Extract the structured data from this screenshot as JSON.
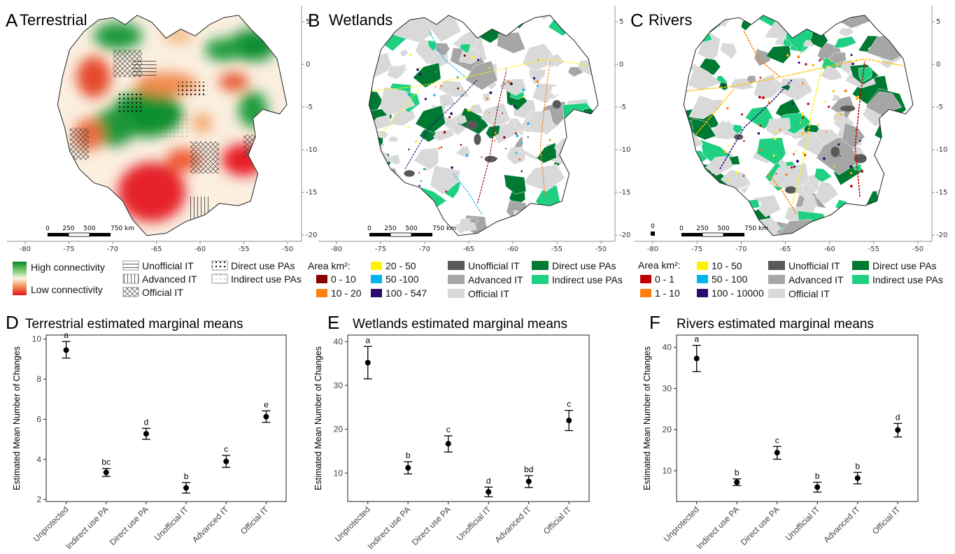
{
  "maps": [
    {
      "letter": "A",
      "title": "Terrestrial",
      "x_ticks": [
        "-80",
        "-75",
        "-70",
        "-65",
        "-60",
        "-55",
        "-50"
      ],
      "y_ticks": [
        "5",
        "0",
        "-5",
        "-10",
        "-15",
        "-20"
      ],
      "scale_ticks": [
        "0",
        "250",
        "500",
        "750 km"
      ],
      "legend_gradient": {
        "high": "High connectivity",
        "low": "Low connectivity"
      },
      "legend_items": [
        {
          "label": "Unofficial IT",
          "pattern": "horizontal-lines"
        },
        {
          "label": "Advanced IT",
          "pattern": "vertical-lines"
        },
        {
          "label": "Official IT",
          "pattern": "crosshatch"
        },
        {
          "label": "Direct use PAs",
          "pattern": "dense-dots"
        },
        {
          "label": "Indirect use PAs",
          "pattern": "sparse-dots"
        }
      ]
    },
    {
      "letter": "B",
      "title": "Wetlands",
      "x_ticks": [
        "-80",
        "-75",
        "-70",
        "-65",
        "-60",
        "-55",
        "-50"
      ],
      "y_ticks": [
        "5",
        "0",
        "-5",
        "-10",
        "-15",
        "-20"
      ],
      "scale_ticks": [
        "0",
        "250",
        "500",
        "750 km"
      ],
      "legend_heading": "Area km²:",
      "area_classes": [
        {
          "label": "0 - 10",
          "color": "#8b0000"
        },
        {
          "label": "10 - 20",
          "color": "#ff7f0e"
        },
        {
          "label": "20 - 50",
          "color": "#fff200"
        },
        {
          "label": "50 -100",
          "color": "#00b4f0"
        },
        {
          "label": "100 - 547",
          "color": "#2a0a6e"
        }
      ],
      "status_classes": [
        {
          "label": "Unofficial IT",
          "color": "#595959"
        },
        {
          "label": "Advanced IT",
          "color": "#a6a6a6"
        },
        {
          "label": "Official IT",
          "color": "#d9d9d9"
        },
        {
          "label": "Direct use PAs",
          "color": "#007a33"
        },
        {
          "label": "Indirect use PAs",
          "color": "#1fd082"
        }
      ]
    },
    {
      "letter": "C",
      "title": "Rivers",
      "x_ticks": [
        "-80",
        "-75",
        "-70",
        "-65",
        "-60",
        "-55",
        "-50"
      ],
      "y_ticks": [
        "5",
        "0",
        "-5",
        "-10",
        "-15",
        "-20"
      ],
      "scale_ticks": [
        "0",
        "250",
        "500",
        "750 km"
      ],
      "extra_scale_label": "0",
      "legend_heading": "Area km²:",
      "area_classes": [
        {
          "label": "0 - 1",
          "color": "#c00000"
        },
        {
          "label": "1 - 10",
          "color": "#ff7f0e"
        },
        {
          "label": "10 - 50",
          "color": "#fff200"
        },
        {
          "label": "50 - 100",
          "color": "#00b4f0"
        },
        {
          "label": "100 - 10000",
          "color": "#2a0a6e"
        }
      ],
      "status_classes": [
        {
          "label": "Unofficial IT",
          "color": "#595959"
        },
        {
          "label": "Advanced IT",
          "color": "#a6a6a6"
        },
        {
          "label": "Official IT",
          "color": "#d9d9d9"
        },
        {
          "label": "Direct use PAs",
          "color": "#007a33"
        },
        {
          "label": "Indirect use PAs",
          "color": "#1fd082"
        }
      ]
    }
  ],
  "chart_data": [
    {
      "type": "scatter",
      "letter": "D",
      "title": "Terrestrial estimated marginal means",
      "ylabel": "Estimated Mean Number of Changes",
      "categories": [
        "Unprotected",
        "Indirect use PA",
        "Direct use PA",
        "Unofficial IT",
        "Advanced IT",
        "Official IT"
      ],
      "values": [
        9.45,
        3.35,
        5.28,
        2.58,
        3.9,
        6.13
      ],
      "lower": [
        9.05,
        3.15,
        5.0,
        2.32,
        3.6,
        5.85
      ],
      "upper": [
        9.88,
        3.55,
        5.55,
        2.85,
        4.2,
        6.42
      ],
      "groups": [
        "a",
        "bc",
        "d",
        "b",
        "c",
        "e"
      ],
      "ylim": [
        1.9,
        10.2
      ],
      "yticks": [
        2,
        4,
        6,
        8,
        10
      ],
      "grid": false
    },
    {
      "type": "scatter",
      "letter": "E",
      "title": "Wetlands estimated marginal means",
      "ylabel": "Estimated Mean Number of Changes",
      "categories": [
        "Unprotected",
        "Indirect use PA",
        "Direct use PA",
        "Unofficial IT",
        "Advanced IT",
        "Official IT"
      ],
      "values": [
        35.2,
        11.2,
        16.7,
        5.7,
        8.1,
        22.0
      ],
      "lower": [
        31.5,
        9.8,
        14.8,
        4.6,
        6.7,
        19.7
      ],
      "upper": [
        38.9,
        12.6,
        18.5,
        6.8,
        9.4,
        24.3
      ],
      "groups": [
        "a",
        "b",
        "c",
        "d",
        "bd",
        "c"
      ],
      "ylim": [
        3.5,
        41.5
      ],
      "yticks": [
        10,
        20,
        30,
        40
      ],
      "grid": false
    },
    {
      "type": "scatter",
      "letter": "F",
      "title": "Rivers estimated marginal means",
      "ylabel": "Estimated Mean Number of Changes",
      "categories": [
        "Unprotected",
        "Indirect use PA",
        "Direct use PA",
        "Unofficial IT",
        "Advanced IT",
        "Official IT"
      ],
      "values": [
        37.3,
        7.2,
        14.4,
        6.0,
        8.2,
        19.9
      ],
      "lower": [
        34.1,
        6.4,
        12.8,
        4.8,
        6.8,
        18.2
      ],
      "upper": [
        40.5,
        8.0,
        15.9,
        7.2,
        9.6,
        21.5
      ],
      "groups": [
        "a",
        "b",
        "c",
        "b",
        "b",
        "d"
      ],
      "ylim": [
        2.5,
        43.0
      ],
      "yticks": [
        10,
        20,
        30,
        40
      ],
      "grid": false
    }
  ]
}
